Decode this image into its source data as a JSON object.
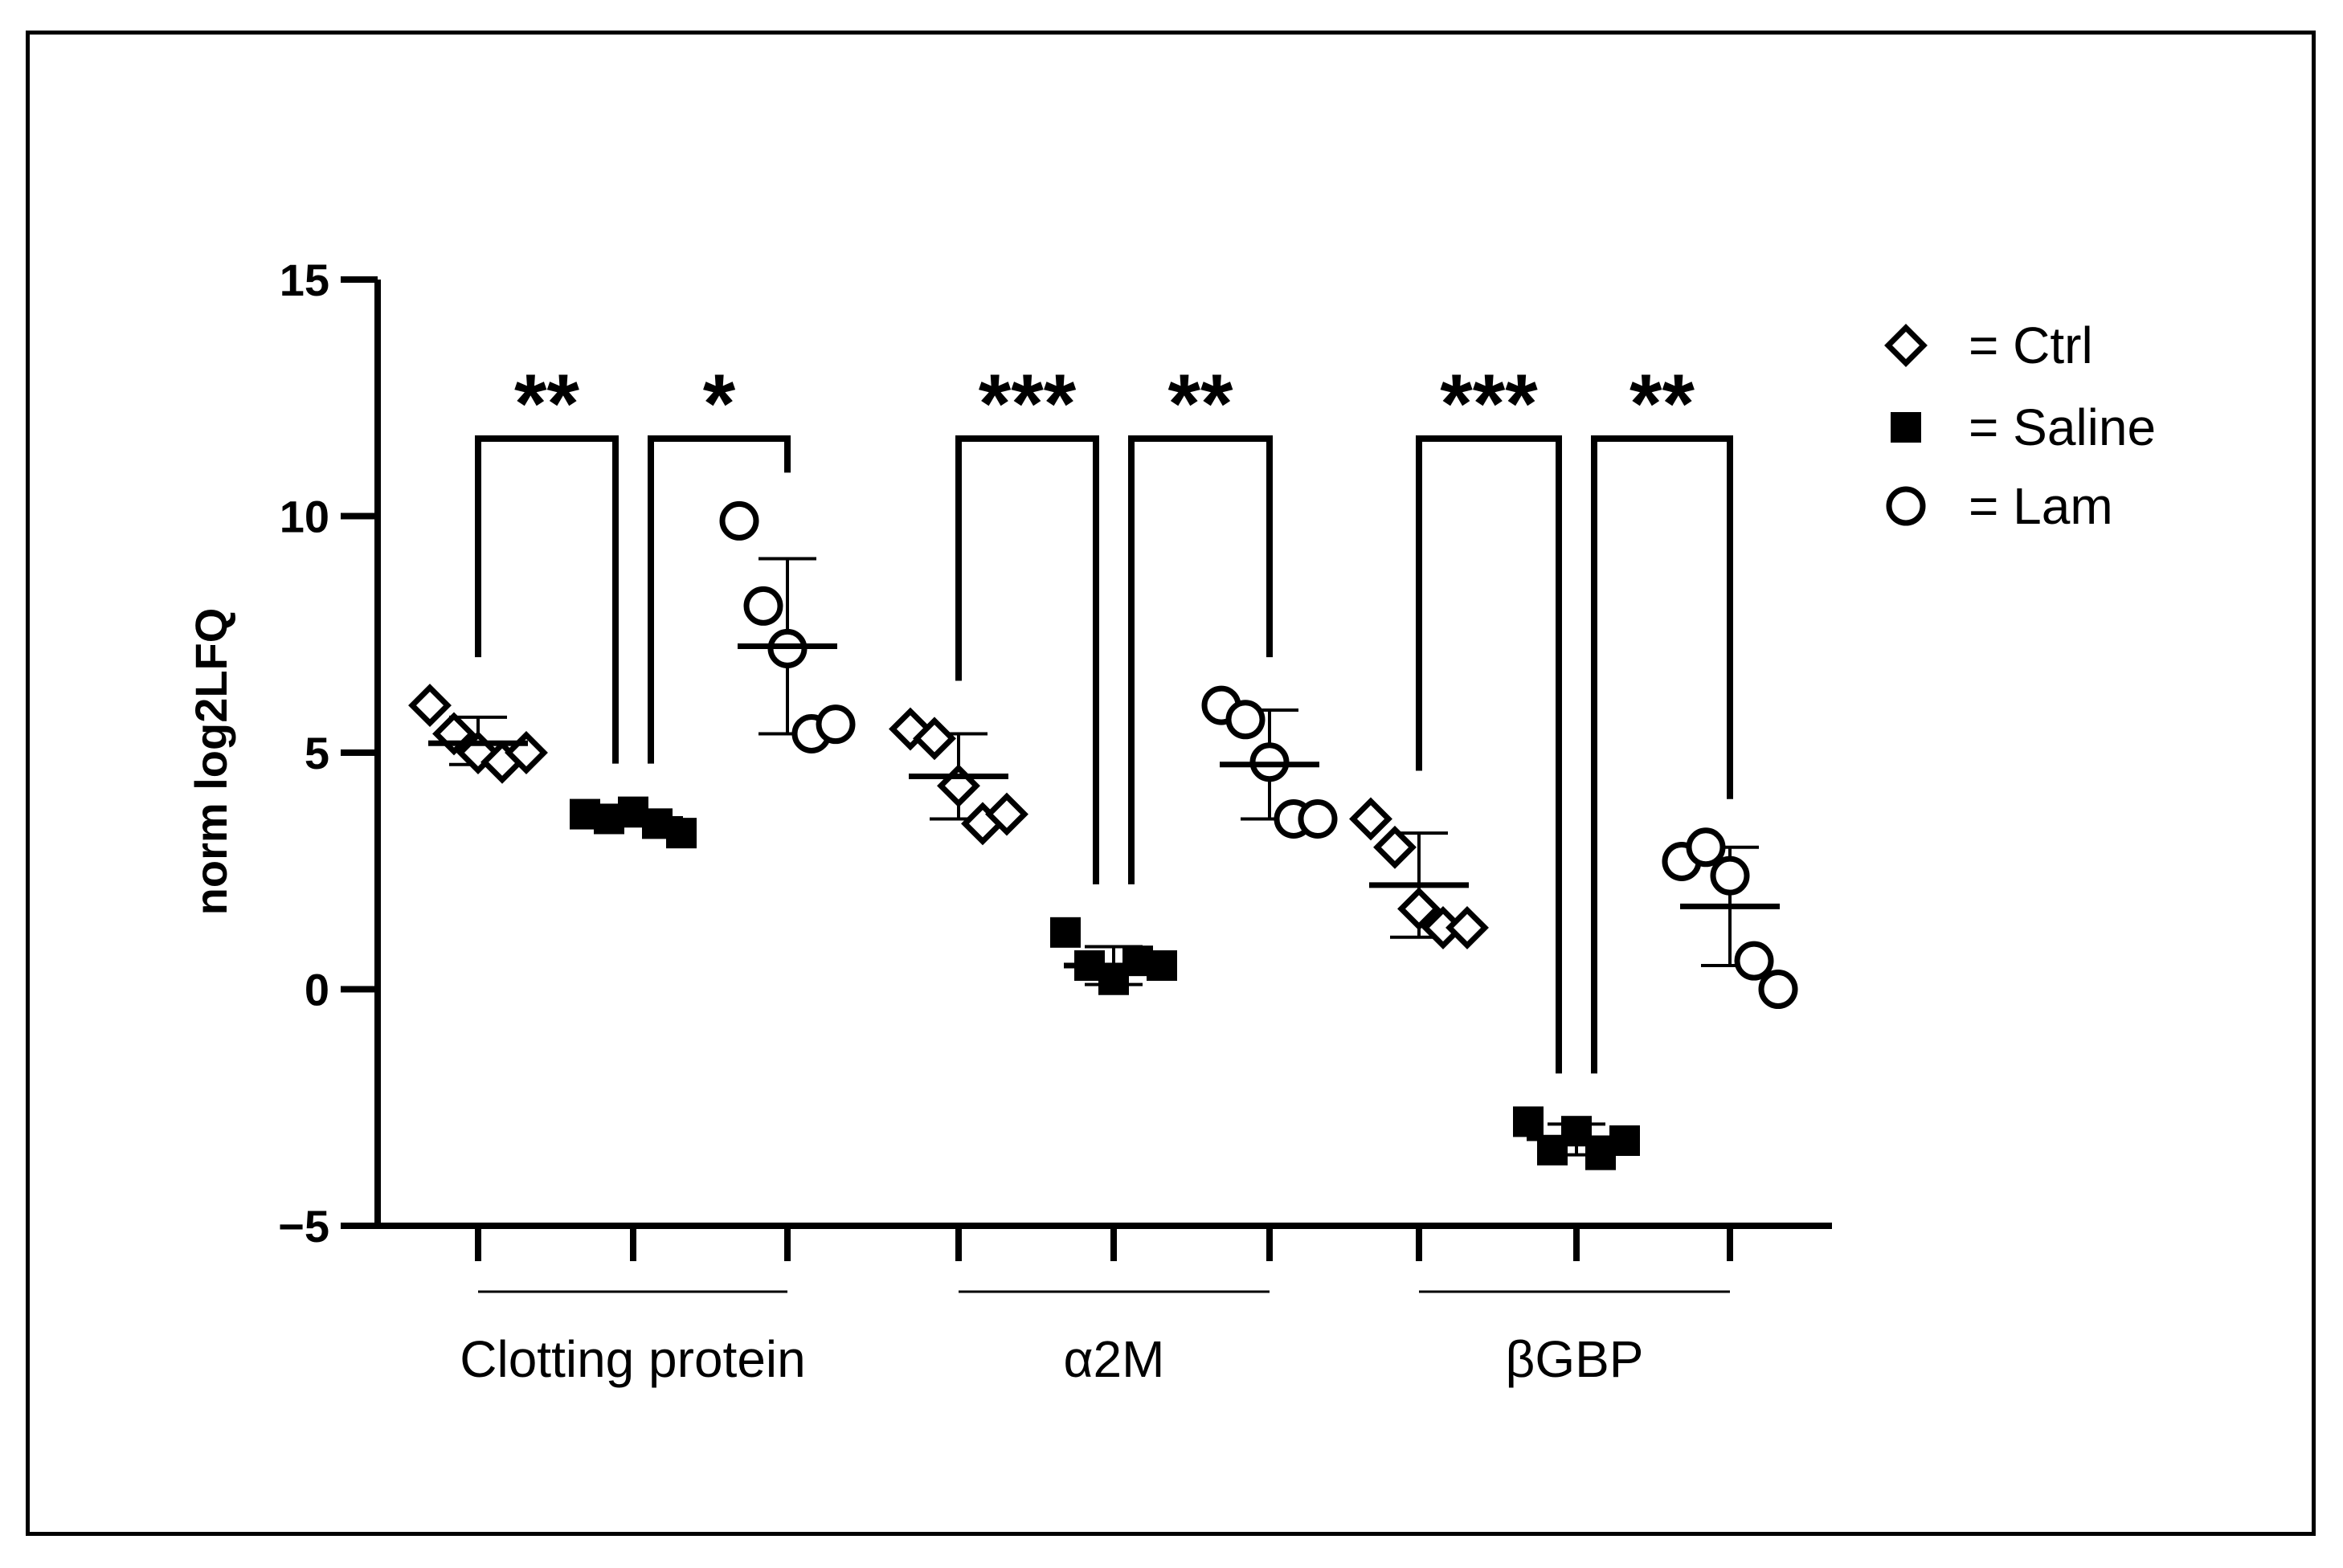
{
  "chart_data": {
    "type": "scatter",
    "title": "",
    "xlabel": "",
    "ylabel": "norm log2LFQ",
    "ylim": [
      -5,
      15
    ],
    "yticks": [
      -5,
      0,
      5,
      10,
      15
    ],
    "ytick_labels": [
      "−5",
      "0",
      "5",
      "10",
      "15"
    ],
    "categories": [
      "Clotting protein",
      "α2M",
      "βGBP"
    ],
    "legend": {
      "position": "top-right",
      "entries": [
        {
          "key": "ctrl",
          "label": "= Ctrl",
          "marker": "diamond-open"
        },
        {
          "key": "saline",
          "label": "= Saline",
          "marker": "square-filled"
        },
        {
          "key": "lam",
          "label": "= Lam",
          "marker": "circle-open"
        }
      ]
    },
    "groups": [
      {
        "category": "Clotting protein",
        "series": [
          {
            "key": "ctrl",
            "points": [
              6.0,
              5.4,
              5.0,
              4.8,
              5.0
            ],
            "mean": 5.2,
            "sd_low": 4.75,
            "sd_high": 5.75
          },
          {
            "key": "saline",
            "points": [
              3.7,
              3.6,
              3.75,
              3.5,
              3.3
            ],
            "mean": 3.6,
            "sd_low": 3.45,
            "sd_high": 3.75
          },
          {
            "key": "lam",
            "points": [
              9.9,
              8.1,
              7.2,
              5.4,
              5.6
            ],
            "mean": 7.25,
            "sd_low": 5.4,
            "sd_high": 9.1
          }
        ],
        "comparisons": [
          {
            "from": "ctrl",
            "to": "saline",
            "label": "**"
          },
          {
            "from": "saline",
            "to": "lam",
            "label": "*"
          }
        ]
      },
      {
        "category": "α2M",
        "series": [
          {
            "key": "ctrl",
            "points": [
              5.5,
              5.3,
              4.3,
              3.5,
              3.7
            ],
            "mean": 4.5,
            "sd_low": 3.6,
            "sd_high": 5.4
          },
          {
            "key": "saline",
            "points": [
              1.2,
              0.5,
              0.2,
              0.6,
              0.5
            ],
            "mean": 0.5,
            "sd_low": 0.1,
            "sd_high": 0.9
          },
          {
            "key": "lam",
            "points": [
              6.0,
              5.7,
              4.8,
              3.6,
              3.6
            ],
            "mean": 4.75,
            "sd_low": 3.6,
            "sd_high": 5.9
          }
        ],
        "comparisons": [
          {
            "from": "ctrl",
            "to": "saline",
            "label": "***"
          },
          {
            "from": "saline",
            "to": "lam",
            "label": "**"
          }
        ]
      },
      {
        "category": "βGBP",
        "series": [
          {
            "key": "ctrl",
            "points": [
              3.6,
              3.0,
              1.7,
              1.3,
              1.3
            ],
            "mean": 2.2,
            "sd_low": 1.1,
            "sd_high": 3.3
          },
          {
            "key": "saline",
            "points": [
              -2.8,
              -3.4,
              -3.0,
              -3.5,
              -3.2
            ],
            "mean": -3.15,
            "sd_low": -3.5,
            "sd_high": -2.85
          },
          {
            "key": "lam",
            "points": [
              2.7,
              3.0,
              2.4,
              0.6,
              0.0
            ],
            "mean": 1.75,
            "sd_low": 0.5,
            "sd_high": 3.0
          }
        ],
        "comparisons": [
          {
            "from": "ctrl",
            "to": "saline",
            "label": "***"
          },
          {
            "from": "saline",
            "to": "lam",
            "label": "**"
          }
        ]
      }
    ]
  }
}
